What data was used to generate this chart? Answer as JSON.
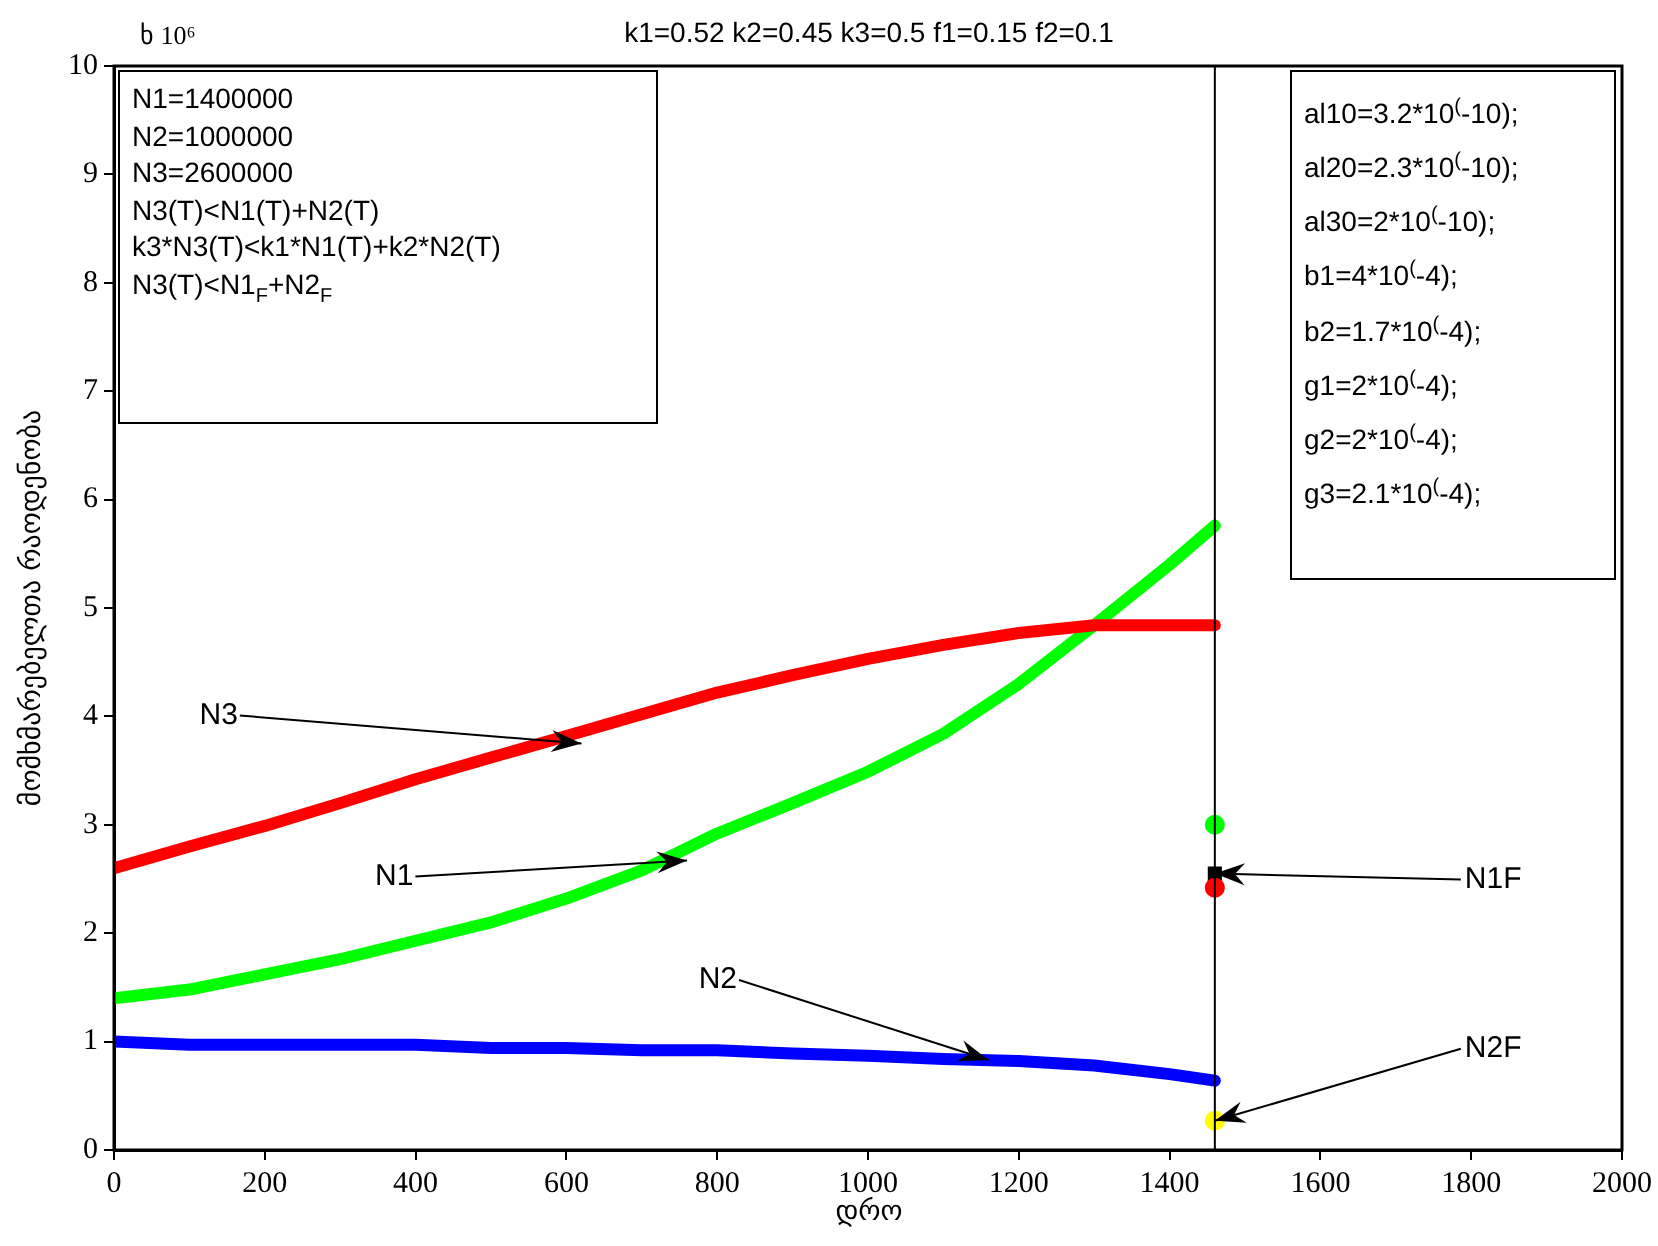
{
  "chart_data": {
    "type": "line",
    "title": "k1=0.52 k2=0.45 k3=0.5 f1=0.15 f2=0.1",
    "xlabel": "დრო",
    "ylabel": "მომხმარებელთა რაოდენობა",
    "x": [
      0,
      100,
      200,
      300,
      400,
      500,
      600,
      700,
      800,
      900,
      1000,
      1100,
      1200,
      1300,
      1400,
      1460
    ],
    "series": [
      {
        "color": "#ff0000",
        "values": [
          2.6,
          2.8,
          2.99,
          3.2,
          3.42,
          3.62,
          3.82,
          4.02,
          4.22,
          4.38,
          4.53,
          4.66,
          4.77,
          4.84,
          4.84,
          4.84
        ]
      },
      {
        "color": "#00ff00",
        "values": [
          1.4,
          1.48,
          1.62,
          1.76,
          1.93,
          2.1,
          2.32,
          2.58,
          2.92,
          3.2,
          3.49,
          3.84,
          4.3,
          4.84,
          5.4,
          5.76
        ]
      },
      {
        "color": "#0000ff",
        "values": [
          1.0,
          0.97,
          0.97,
          0.97,
          0.97,
          0.94,
          0.94,
          0.92,
          0.92,
          0.89,
          0.87,
          0.84,
          0.82,
          0.78,
          0.7,
          0.64
        ]
      },
      {
        "type": "scatter",
        "color": "#00ff00",
        "marker": "circle",
        "values": [
          null,
          null,
          null,
          null,
          null,
          null,
          null,
          null,
          null,
          null,
          null,
          null,
          null,
          null,
          null,
          3.0
        ]
      },
      {
        "type": "scatter",
        "color": "#ff0000",
        "marker": "circle",
        "values": [
          null,
          null,
          null,
          null,
          null,
          null,
          null,
          null,
          null,
          null,
          null,
          null,
          null,
          null,
          null,
          2.42
        ]
      },
      {
        "type": "scatter",
        "color": "#000000",
        "marker": "square",
        "values": [
          null,
          null,
          null,
          null,
          null,
          null,
          null,
          null,
          null,
          null,
          null,
          null,
          null,
          null,
          null,
          2.55
        ]
      },
      {
        "type": "scatter",
        "color": "#ffff00",
        "marker": "circle",
        "values": [
          null,
          null,
          null,
          null,
          null,
          null,
          null,
          null,
          null,
          null,
          null,
          null,
          null,
          null,
          null,
          0.27
        ]
      }
    ],
    "xlim": [
      0,
      2000
    ],
    "xticks": [
      0,
      200,
      400,
      600,
      800,
      1000,
      1200,
      1400,
      1600,
      1800,
      2000
    ],
    "ylim": [
      0,
      10
    ],
    "yticks": [
      0,
      1,
      2,
      3,
      4,
      5,
      6,
      7,
      8,
      9,
      10
    ],
    "grid": false,
    "legend": false,
    "marker": "none",
    "line_style": "solid",
    "ref_lines": [
      {
        "axis": "x",
        "value": 1460,
        "color": "#000000"
      }
    ],
    "annotations": [
      "ხ 10⁶",
      "N1=1400000",
      "N2=1000000",
      "N3=2600000",
      "N3(T)<N1(T)+N2(T)",
      "k3*N3(T)<k1*N1(T)+k2*N2(T)",
      "N3(T)<N1$_{F}$+N2$_{F}$",
      "al10=3.2*10$^{(}$-10);",
      "al20=2.3*10$^{(}$-10);",
      "al30=2*10$^{(}$-10);",
      "b1=4*10$^{(}$-4);",
      "b2=1.7*10$^{(}$-4);",
      "g1=2*10$^{(}$-4);",
      "g2=2*10$^{(}$-4);",
      "g3=2.1*10$^{(}$-4);",
      {
        "text": "N3",
        "x": 620,
        "y": 3.75
      },
      {
        "text": "N1",
        "x": 760,
        "y": 2.67
      },
      {
        "text": "N2",
        "x": 1160,
        "y": 0.83
      },
      {
        "text": "N1F",
        "x": 1460,
        "y": 2.55
      },
      {
        "text": "N2F",
        "x": 1460,
        "y": 0.27
      }
    ]
  }
}
